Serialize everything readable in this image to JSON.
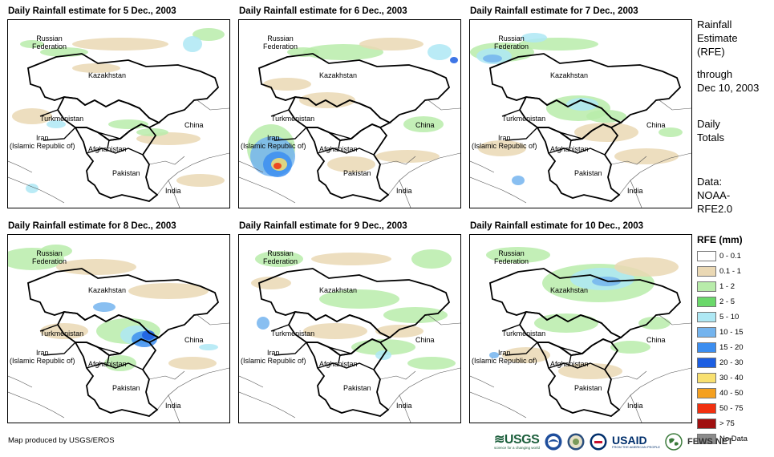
{
  "panels": [
    {
      "title": "Daily Rainfall estimate for 5 Dec., 2003"
    },
    {
      "title": "Daily Rainfall estimate for 6 Dec., 2003"
    },
    {
      "title": "Daily Rainfall estimate for 7 Dec., 2003"
    },
    {
      "title": "Daily Rainfall estimate for 8 Dec., 2003"
    },
    {
      "title": "Daily Rainfall estimate for 9 Dec., 2003"
    },
    {
      "title": "Daily Rainfall estimate for 10 Dec., 2003"
    }
  ],
  "country_labels": {
    "russia": "Russian\nFederation",
    "kazakhstan": "Kazakhstan",
    "turkmenistan": "Turkmenistan",
    "iran": "Iran\n(Islamic Republic of)",
    "afghanistan": "Afghanistan",
    "pakistan": "Pakistan",
    "china": "China",
    "india": "India"
  },
  "side": {
    "title_lines": [
      "Rainfall",
      "Estimate",
      "(RFE)"
    ],
    "through_lines": [
      "through",
      "Dec 10, 2003"
    ],
    "totals_lines": [
      "Daily",
      "Totals"
    ],
    "data_lines": [
      "Data:",
      "NOAA-",
      "RFE2.0"
    ]
  },
  "legend": {
    "title": "RFE (mm)",
    "items": [
      {
        "label": "0 - 0.1",
        "color": "#ffffff"
      },
      {
        "label": "0.1 - 1",
        "color": "#ead8b4"
      },
      {
        "label": "1 - 2",
        "color": "#b8ecaa"
      },
      {
        "label": "2 - 5",
        "color": "#6ad86a"
      },
      {
        "label": "5 - 10",
        "color": "#aee8f4"
      },
      {
        "label": "10 - 15",
        "color": "#74b4ee"
      },
      {
        "label": "15 - 20",
        "color": "#3c8ef0"
      },
      {
        "label": "20 - 30",
        "color": "#1c5ee2"
      },
      {
        "label": "30 - 40",
        "color": "#f8e070"
      },
      {
        "label": "40 - 50",
        "color": "#f4a020"
      },
      {
        "label": "50 - 75",
        "color": "#f03010"
      },
      {
        "label": "> 75",
        "color": "#a01010"
      },
      {
        "label": "No Data",
        "color": "#8c8c8c"
      }
    ]
  },
  "credit": "Map produced by USGS/EROS",
  "logos": {
    "usgs": "≋USGS",
    "usgs_tagline": "science for a changing world",
    "usaid": "USAID",
    "usaid_tagline": "FROM THE AMERICAN PEOPLE",
    "fews": "FEWS NET"
  }
}
